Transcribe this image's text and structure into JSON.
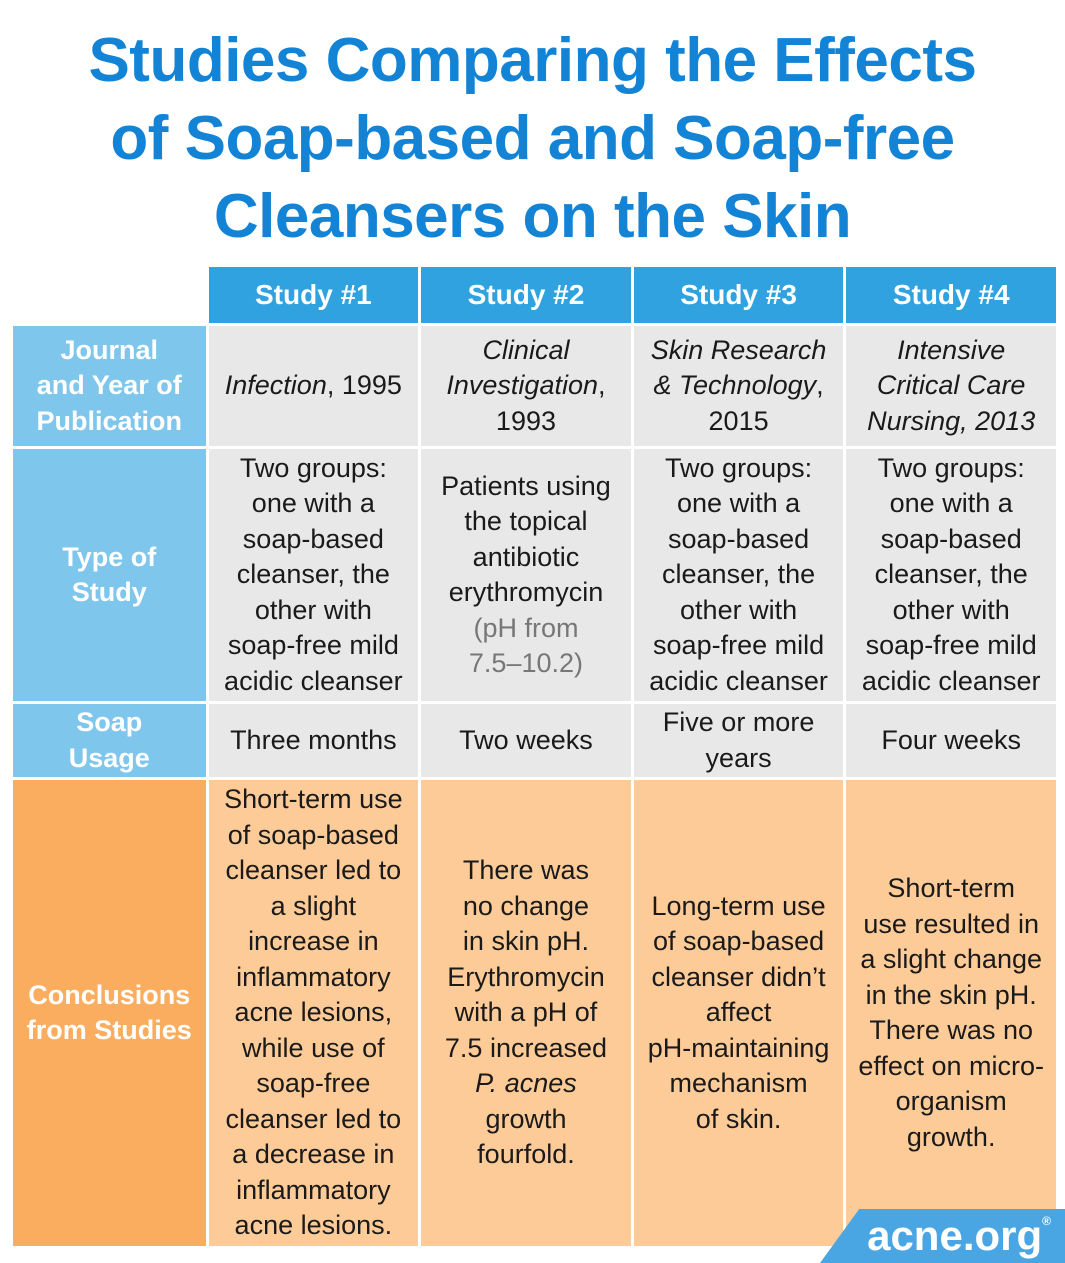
{
  "title": {
    "lines": [
      "Studies Comparing the Effects",
      "of Soap-based and Soap-free",
      "Cleansers on the Skin"
    ]
  },
  "table": {
    "headers": [
      "Study #1",
      "Study #2",
      "Study #3",
      "Study #4"
    ],
    "row_labels": {
      "journal": [
        "Journal",
        "and Year of",
        "Publication"
      ],
      "type": [
        "Type of",
        "Study"
      ],
      "usage": [
        "Soap",
        "Usage"
      ],
      "conclusions": [
        "Conclusions",
        "from Studies"
      ]
    },
    "journal": [
      {
        "italic": "Infection",
        "rest": ", 1995"
      },
      {
        "italic1": "Clinical",
        "italic2": "Investigation",
        "rest2": ",",
        "line3": "1993"
      },
      {
        "italic1": "Skin Research",
        "italic2": "& Technology",
        "rest2": ",",
        "line3": "2015"
      },
      {
        "line1": "Intensive",
        "line2": "Critical Care",
        "line3": "Nursing, 2013"
      }
    ],
    "type": [
      [
        "Two groups:",
        "one with a",
        "soap-based",
        "cleanser, the",
        "other with",
        "soap-free mild",
        "acidic cleanser"
      ],
      {
        "lines": [
          "Patients using",
          "the topical",
          "antibiotic",
          "erythromycin"
        ],
        "light": [
          "(pH from",
          "7.5–10.2)"
        ]
      },
      [
        "Two groups:",
        "one with a",
        "soap-based",
        "cleanser, the",
        "other with",
        "soap-free mild",
        "acidic cleanser"
      ],
      [
        "Two groups:",
        "one with a",
        "soap-based",
        "cleanser, the",
        "other with",
        "soap-free mild",
        "acidic cleanser"
      ]
    ],
    "usage": [
      [
        "Three months"
      ],
      [
        "Two weeks"
      ],
      [
        "Five or more",
        "years"
      ],
      [
        "Four weeks"
      ]
    ],
    "conclusions": [
      [
        "Short-term use",
        "of soap-based",
        "cleanser led to",
        "a slight",
        "increase in",
        "inflammatory",
        "acne lesions,",
        "while use of",
        "soap-free",
        "cleanser led to",
        "a decrease in",
        "inflammatory",
        "acne lesions."
      ],
      {
        "lines": [
          "There was",
          "no change",
          "in skin pH.",
          "Erythromycin",
          "with a pH of",
          "7.5 increased"
        ],
        "italic": "P. acnes",
        "lines2": [
          "growth",
          "fourfold."
        ]
      },
      [
        "Long-term use",
        "of soap-based",
        "cleanser didn’t",
        "affect",
        "pH-maintaining",
        "mechanism",
        "of skin."
      ],
      [
        "Short-term",
        "use resulted in",
        "a slight change",
        "in the skin pH.",
        "There was no",
        "effect on micro-",
        "organism",
        "growth."
      ]
    ]
  },
  "logo": {
    "text": "acne.org",
    "mark": "®"
  },
  "colors": {
    "title_blue": "#1383d6",
    "header_blue": "#2fa2df",
    "rowhead_blue": "#7fc6ec",
    "gray_cell": "#e8e8e8",
    "rowhead_orange": "#fbad5f",
    "peach_cell": "#fdcb98"
  }
}
